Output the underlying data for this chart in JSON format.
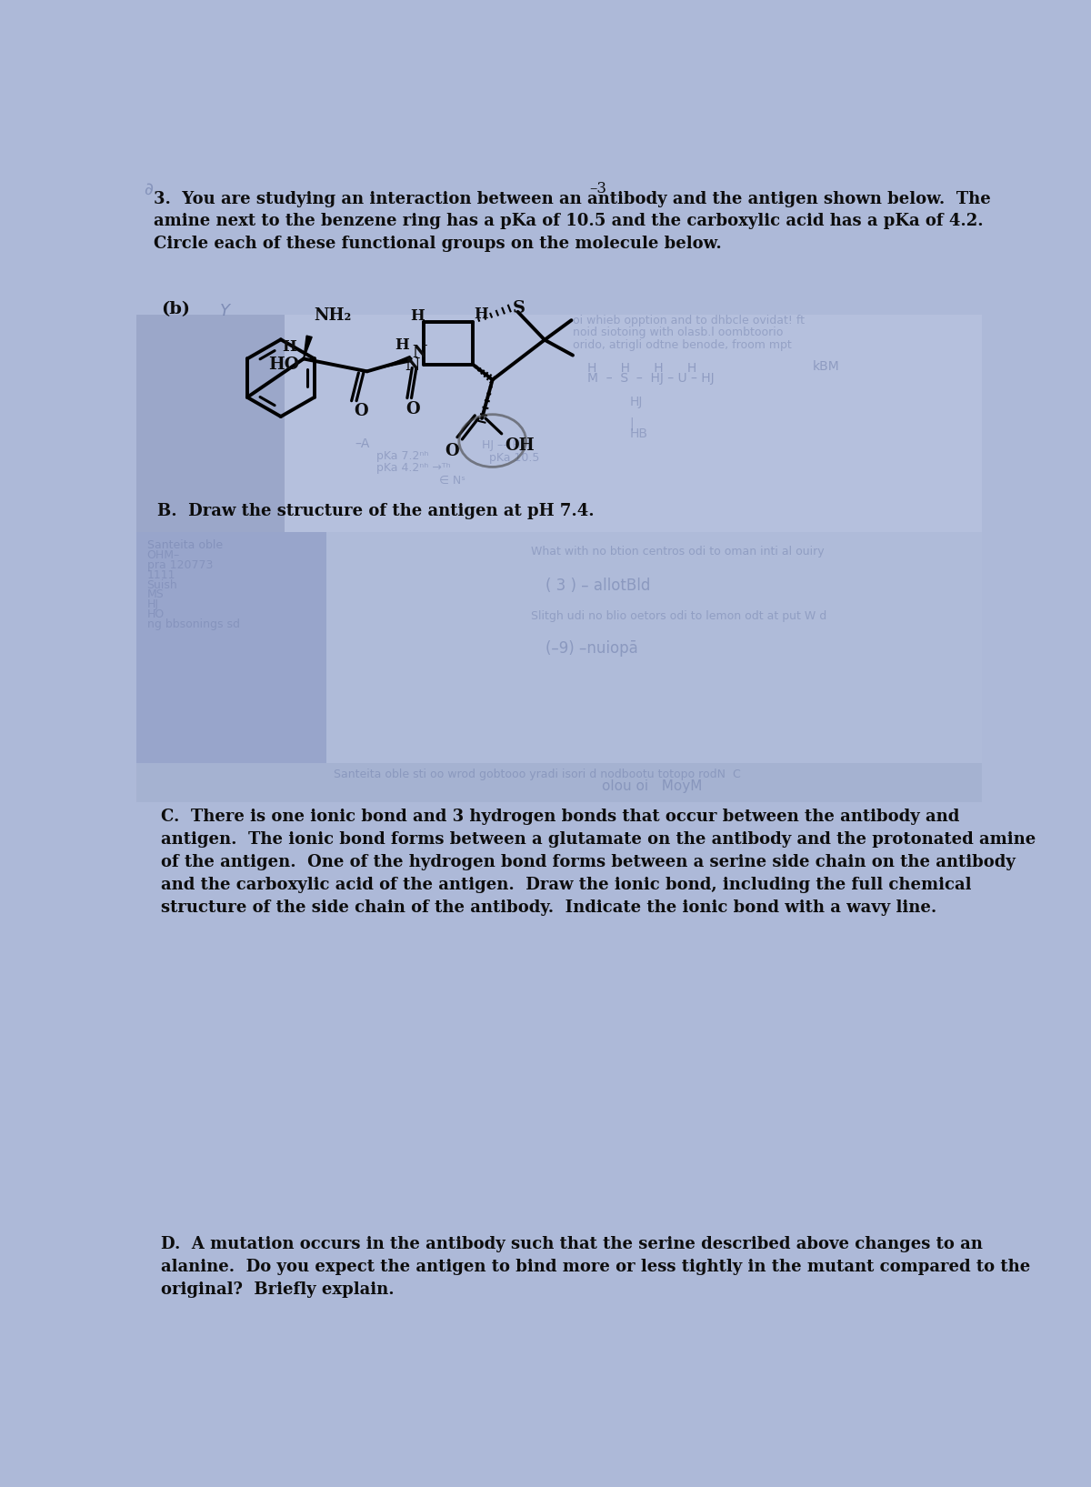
{
  "bg_color": "#adb9d8",
  "figsize": [
    12.0,
    16.35
  ],
  "dpi": 100,
  "title_text": "3.  You are studying an interaction between an antibody and the antigen shown below.  The\namine next to the benzene ring has a pKa of 10.5 and the carboxylic acid has a pKa of 4.2.\nCircle each of these functional groups on the molecule below.",
  "b_label": "(b)",
  "B_question": "B.  Draw the structure of the antigen at pH 7.4.",
  "C_question": "C.  There is one ionic bond and 3 hydrogen bonds that occur between the antibody and\nantigen.  The ionic bond forms between a glutamate on the antibody and the protonated amine\nof the antigen.  One of the hydrogen bond forms between a serine side chain on the antibody\nand the carboxylic acid of the antigen.  Draw the ionic bond, including the full chemical\nstructure of the side chain of the antibody.  Indicate the ionic bond with a wavy line.",
  "D_question": "D.  A mutation occurs in the antibody such that the serine described above changes to an\nalanine.  Do you expect the antigen to bind more or less tightly in the mutant compared to the\noriginal?  Briefly explain.",
  "text_color": "#0d0d0d",
  "handwriting_color": "#6070a0",
  "hw_alpha": 0.45
}
